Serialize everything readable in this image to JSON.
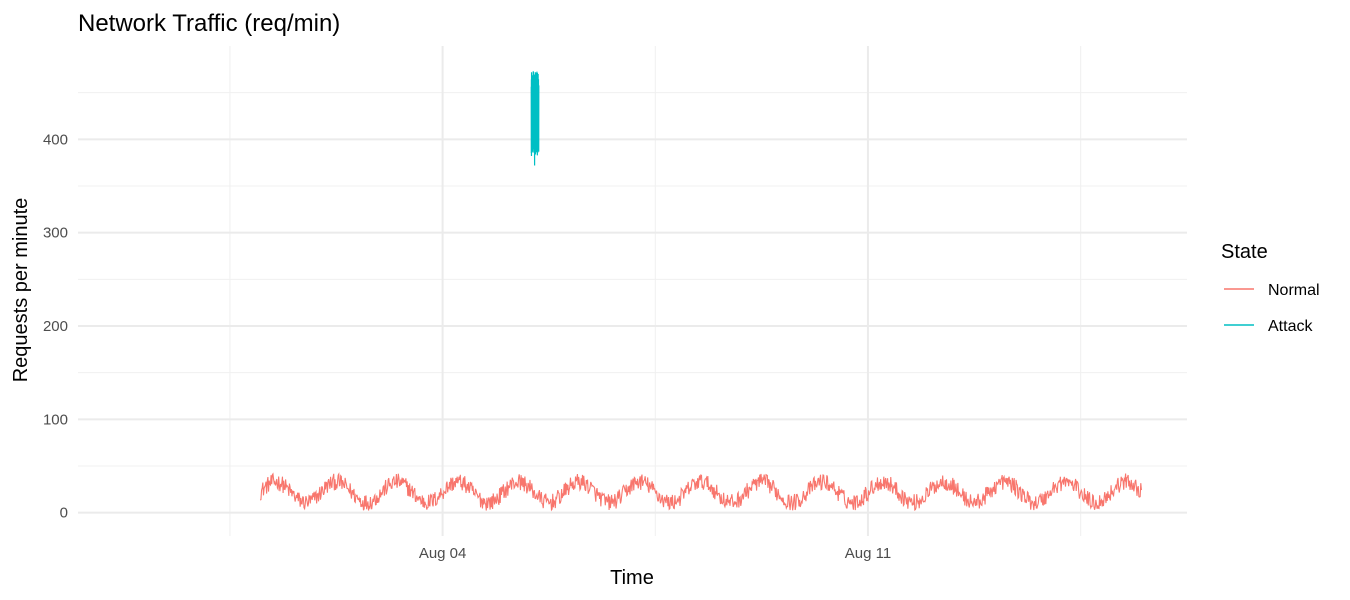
{
  "chart_data": {
    "type": "line",
    "title": "Network Traffic (req/min)",
    "xlabel": "Time",
    "ylabel": "Requests per minute",
    "x_range": [
      "2023-07-29T00:00",
      "2023-08-16T06:00"
    ],
    "x_ticks": [
      {
        "label": "Aug 04",
        "value": "2023-08-04T00:00"
      },
      {
        "label": "Aug 11",
        "value": "2023-08-11T00:00"
      }
    ],
    "x_minor_ticks": [
      "2023-07-31T12:00",
      "2023-08-07T12:00",
      "2023-08-14T12:00"
    ],
    "ylim": [
      -25,
      500
    ],
    "y_ticks": [
      0,
      100,
      200,
      300,
      400
    ],
    "y_minor_ticks": [
      50,
      150,
      250,
      350,
      450
    ],
    "grid": true,
    "legend": {
      "title": "State",
      "position": "right",
      "entries": [
        {
          "label": "Normal",
          "color": "#F8766D"
        },
        {
          "label": "Attack",
          "color": "#00BFC4"
        }
      ]
    },
    "series": [
      {
        "name": "Normal",
        "color": "#F8766D",
        "start": "2023-08-01T00:00",
        "end": "2023-08-15T12:00",
        "pattern": "daily sinusoid",
        "mean": 22,
        "amplitude": 11,
        "noise": 9,
        "period_hours": 24
      },
      {
        "name": "Attack",
        "color": "#00BFC4",
        "start": "2023-08-05T11:00",
        "end": "2023-08-05T14:00",
        "mean": 430,
        "min": 372,
        "max": 474
      }
    ]
  }
}
